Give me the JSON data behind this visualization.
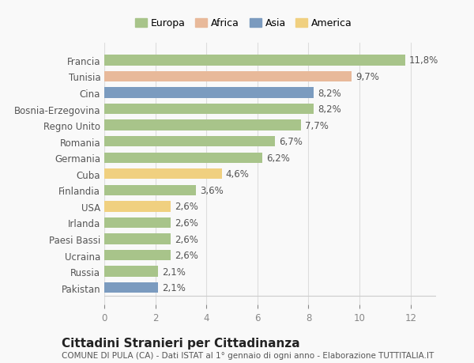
{
  "countries": [
    "Francia",
    "Tunisia",
    "Cina",
    "Bosnia-Erzegovina",
    "Regno Unito",
    "Romania",
    "Germania",
    "Cuba",
    "Finlandia",
    "USA",
    "Irlanda",
    "Paesi Bassi",
    "Ucraina",
    "Russia",
    "Pakistan"
  ],
  "values": [
    11.8,
    9.7,
    8.2,
    8.2,
    7.7,
    6.7,
    6.2,
    4.6,
    3.6,
    2.6,
    2.6,
    2.6,
    2.6,
    2.1,
    2.1
  ],
  "labels": [
    "11,8%",
    "9,7%",
    "8,2%",
    "8,2%",
    "7,7%",
    "6,7%",
    "6,2%",
    "4,6%",
    "3,6%",
    "2,6%",
    "2,6%",
    "2,6%",
    "2,6%",
    "2,1%",
    "2,1%"
  ],
  "regions": [
    "Europa",
    "Africa",
    "Asia",
    "Europa",
    "Europa",
    "Europa",
    "Europa",
    "America",
    "Europa",
    "America",
    "Europa",
    "Europa",
    "Europa",
    "Europa",
    "Asia"
  ],
  "colors": {
    "Europa": "#a8c48a",
    "Africa": "#e8b99a",
    "Asia": "#7b9bbf",
    "America": "#f0d080"
  },
  "title": "Cittadini Stranieri per Cittadinanza",
  "subtitle": "COMUNE DI PULA (CA) - Dati ISTAT al 1° gennaio di ogni anno - Elaborazione TUTTITALIA.IT",
  "xlim": [
    0,
    13
  ],
  "xticks": [
    0,
    2,
    4,
    6,
    8,
    10,
    12
  ],
  "background_color": "#f9f9f9",
  "grid_color": "#dddddd",
  "bar_height": 0.65,
  "label_fontsize": 8.5,
  "tick_fontsize": 8.5,
  "title_fontsize": 11,
  "subtitle_fontsize": 7.5
}
